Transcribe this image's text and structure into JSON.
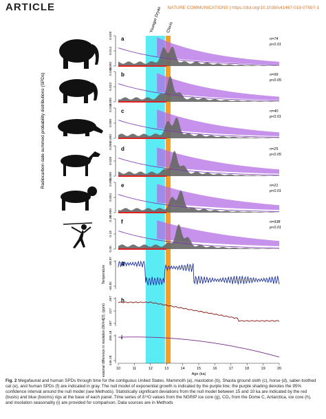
{
  "header": {
    "section": "ARTICLE",
    "journal": "NATURE COMMUNICATIONS | https://doi.org/10.1038/s41467-018-07897-1"
  },
  "figure": {
    "ylabel": "Radiocarbon date summed probability distributions (SPDs)",
    "annotations": [
      "Younger Dryas",
      "Clovis"
    ],
    "panels": [
      {
        "letter": "a",
        "yticks": [
          "0.000",
          "0.014",
          "0.028"
        ],
        "n": "n=74",
        "p": "p<0.01"
      },
      {
        "letter": "b",
        "yticks": [
          "0.000",
          "0.023",
          "0.046"
        ],
        "n": "n=99",
        "p": "p<0.05"
      },
      {
        "letter": "c",
        "yticks": [
          "0.000",
          "0.009",
          "0.018"
        ],
        "n": "n=40",
        "p": "p<0.01"
      },
      {
        "letter": "d",
        "yticks": [
          "0.000",
          "0.028",
          "0.056"
        ],
        "n": "n=25",
        "p": "p<0.05"
      },
      {
        "letter": "e",
        "yticks": [
          "0.000",
          "0.004",
          "0.008"
        ],
        "n": "n=21",
        "p": "p<0.01"
      },
      {
        "letter": "f",
        "yticks": [
          "0.00",
          "0.18",
          "0.36"
        ],
        "n": "n=938",
        "p": "p<0.01"
      }
    ],
    "climate": [
      {
        "letter": "g",
        "ylabel": "Temperature",
        "yticks": [
          "-46.82",
          "-38.87"
        ]
      },
      {
        "letter": "h",
        "ylabel": "CO₂ (ppm)",
        "yticks": [
          "187",
          "227",
          "267"
        ]
      },
      {
        "letter": "i",
        "ylabel": "Seasonal difference in insolation (W/m²)",
        "yticks": [
          "446.18",
          "469.18"
        ]
      }
    ],
    "xaxis": {
      "label": "Age (ka)",
      "ticks": [
        "10",
        "11",
        "12",
        "13",
        "14",
        "15",
        "16",
        "17",
        "18",
        "19",
        "20"
      ]
    }
  },
  "caption": {
    "label": "Fig. 2",
    "text": "Megafaunal and human SPDs through time for the contiguous United States. Mammoth (a), mastodon (b), Shasta ground sloth (c), horse (d), saber-toothed cat (e), and human SPDs (f) are indicated in gray. The null model of exponential growth is indicated by the purple line; the purple shading denotes the 95% confidence interval around the null model (see Methods). Statistically significant deviations from the null model between 15 and 10 ka are indicated by the red (busts) and blue (booms) rigs at the base of each panel. Time series of δ¹⁸O values from the NGRIP ice core (g), CO₂ from the Dome C, Antarctica, ice core (h), and insolation seasonality (i) are provided for comparison. Data sources are in Methods"
  }
}
